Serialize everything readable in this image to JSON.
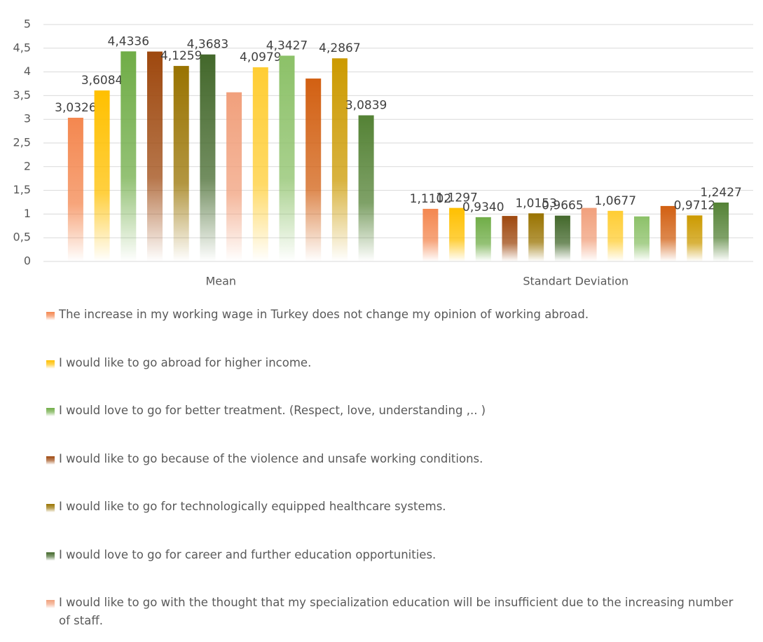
{
  "chart_data": {
    "type": "bar",
    "categories": [
      "Mean",
      "Standart Deviation"
    ],
    "ylim": [
      0,
      5
    ],
    "yticks": [
      0,
      {
        "value": 0.5,
        "label": "0,5"
      },
      1,
      {
        "value": 1.5,
        "label": "1,5"
      },
      2,
      {
        "value": 2.5,
        "label": "2,5"
      },
      3,
      {
        "value": 3.5,
        "label": "3,5"
      },
      4,
      {
        "value": 4.5,
        "label": "4,5"
      },
      5
    ],
    "grid": true,
    "series": [
      {
        "name": "The increase in my working wage in Turkey does not change my opinion of working abroad.",
        "color": "#f4874f",
        "values": [
          3.0326,
          1.1102
        ],
        "value_labels": [
          "3,0326",
          "1,1102"
        ]
      },
      {
        "name": "I would like to go abroad for higher income.",
        "color": "#ffc000",
        "values": [
          3.6084,
          1.1297
        ],
        "value_labels": [
          "3,6084",
          "1,1297"
        ]
      },
      {
        "name": "I would love to go for better treatment. (Respect, love, understanding ,.. )",
        "color": "#70ad47",
        "values": [
          4.4336,
          0.934
        ],
        "value_labels": [
          "4,4336",
          "0,9340"
        ]
      },
      {
        "name": "I would like to go because of the violence and unsafe working conditions.",
        "color": "#9e480e",
        "values": [
          4.43,
          0.96
        ],
        "value_labels": [
          null,
          null
        ]
      },
      {
        "name": "I would like to go for technologically equipped healthcare systems.",
        "color": "#997300",
        "values": [
          4.1259,
          1.0153
        ],
        "value_labels": [
          "4,1259",
          "1,0153"
        ]
      },
      {
        "name": "I would love to go for career and further education opportunities.",
        "color": "#43682b",
        "values": [
          4.3683,
          0.9665
        ],
        "value_labels": [
          "4,3683",
          "0,9665"
        ]
      },
      {
        "name": "I would like to go with the thought that my specialization education will be insufficient due to the increasing number of staff.",
        "color": "#f1a07c",
        "values": [
          3.57,
          1.13
        ],
        "value_labels": [
          null,
          null
        ]
      },
      {
        "name": null,
        "color": "#ffcd33",
        "values": [
          4.0979,
          1.0677
        ],
        "value_labels": [
          "4,0979",
          "1,0677"
        ]
      },
      {
        "name": null,
        "color": "#8cc168",
        "values": [
          4.3427,
          0.95
        ],
        "value_labels": [
          "4,3427",
          null
        ]
      },
      {
        "name": null,
        "color": "#d26012",
        "values": [
          3.86,
          1.17
        ],
        "value_labels": [
          null,
          null
        ]
      },
      {
        "name": null,
        "color": "#cc9a00",
        "values": [
          4.2867,
          0.9712
        ],
        "value_labels": [
          "4,2867",
          "0,9712"
        ]
      },
      {
        "name": null,
        "color": "#548235",
        "values": [
          3.0839,
          1.2427
        ],
        "value_labels": [
          "3,0839",
          "1,2427"
        ]
      }
    ]
  }
}
